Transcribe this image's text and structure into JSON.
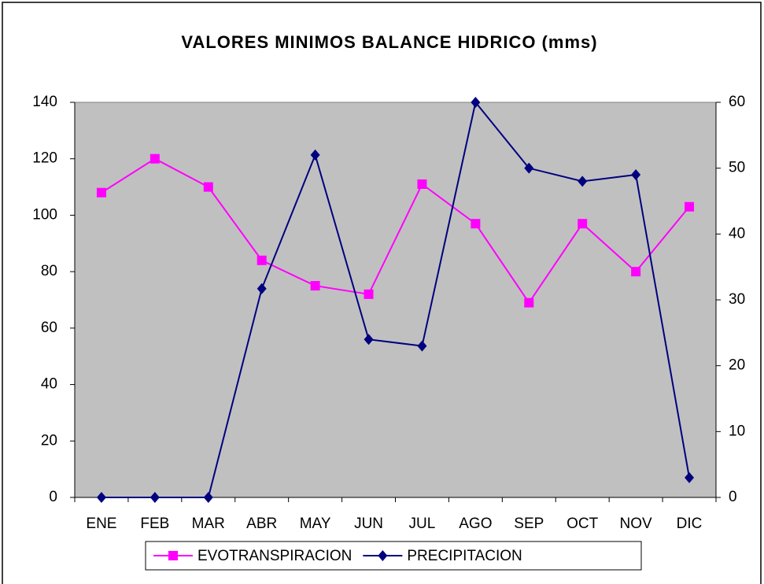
{
  "chart_data": {
    "type": "line",
    "title": "VALORES MINIMOS BALANCE HIDRICO (mms)",
    "categories": [
      "ENE",
      "FEB",
      "MAR",
      "ABR",
      "MAY",
      "JUN",
      "JUL",
      "AGO",
      "SEP",
      "OCT",
      "NOV",
      "DIC"
    ],
    "series": [
      {
        "name": "EVOTRANSPIRACION",
        "color": "#ff00ff",
        "marker": "square",
        "values": [
          108,
          120,
          110,
          84,
          75,
          72,
          111,
          97,
          69,
          97,
          80,
          103
        ]
      },
      {
        "name": "PRECIPITACION",
        "color": "#000080",
        "marker": "diamond",
        "axis": "y2",
        "values": [
          0,
          0,
          0,
          31.7,
          52,
          24,
          23,
          60,
          50,
          48,
          49,
          3
        ]
      }
    ],
    "ylim": [
      0,
      140
    ],
    "yticks": [
      0,
      20,
      40,
      60,
      80,
      100,
      120,
      140
    ],
    "y2lim": [
      0,
      60
    ],
    "y2ticks": [
      0,
      10,
      20,
      30,
      40,
      50,
      60
    ],
    "plot_background": "#c0c0c0",
    "legend": "bottom"
  }
}
